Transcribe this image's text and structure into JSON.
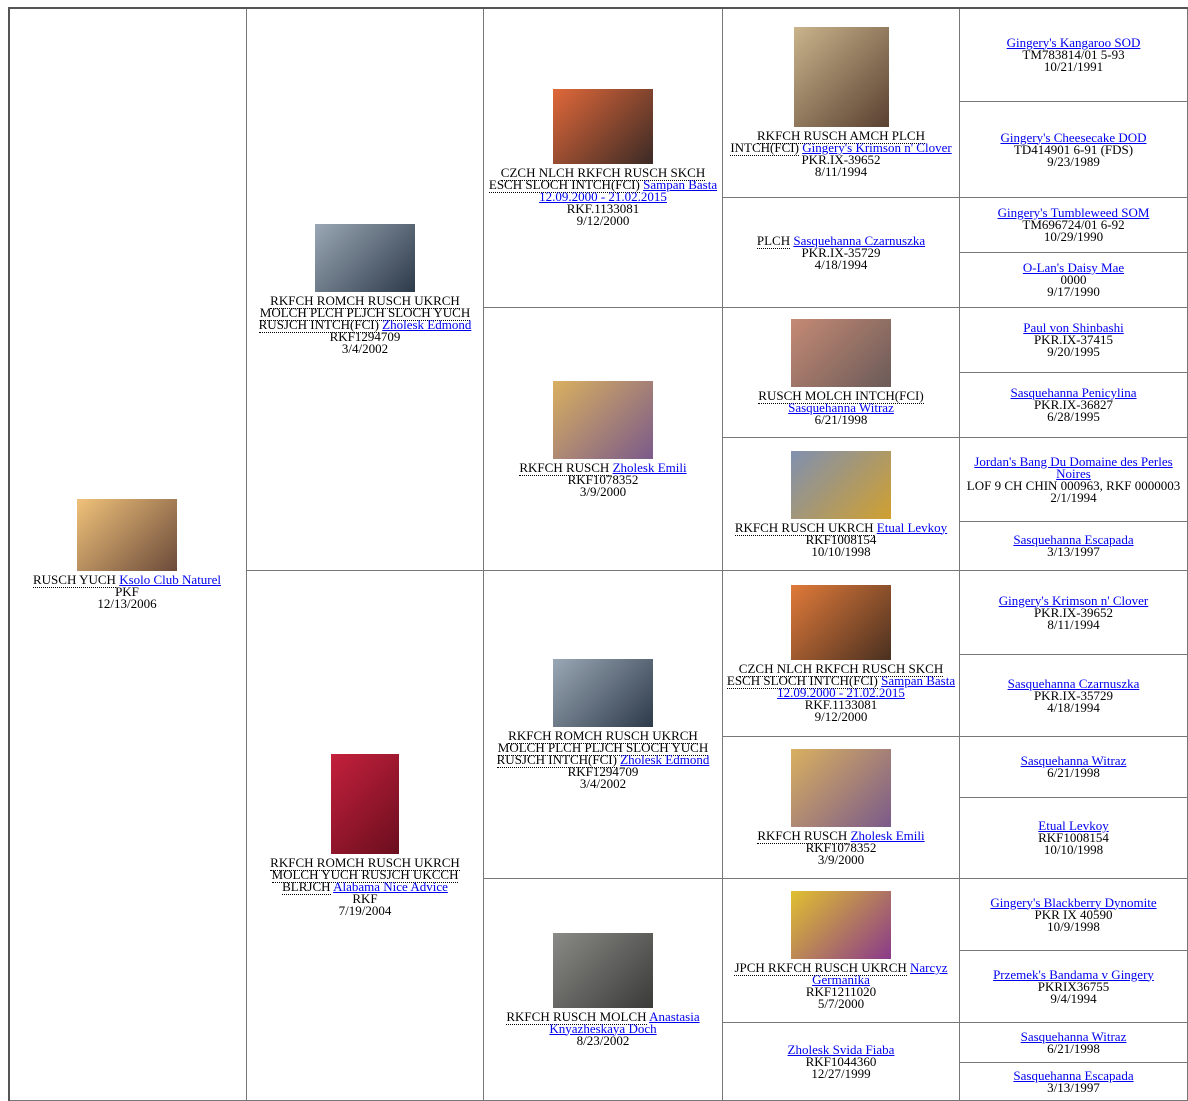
{
  "gen1": [
    {
      "titles": "RUSCH YUCH",
      "name": "Ksolo Club Naturel",
      "reg": "PKF",
      "date": "12/13/2006"
    }
  ],
  "gen2": [
    {
      "titles": "RKFCH ROMCH RUSCH UKRCH MOLCH PLCH PLJCH SLOCH YUCH RUSJCH INTCH(FCI)",
      "name": "Zholesk Edmond",
      "reg": "RKF1294709",
      "date": "3/4/2002"
    },
    {
      "titles": "RKFCH ROMCH RUSCH UKRCH MOLCH YUCH RUSJCH UKCCH BLRJCH",
      "name": "Alabama Nice Advice",
      "reg": "RKF",
      "date": "7/19/2004"
    }
  ],
  "gen3": [
    {
      "titles": "CZCH NLCH RKFCH RUSCH SKCH ESCH SLOCH INTCH(FCI)",
      "name": "Sampan Basta 12.09.2000 - 21.02.2015",
      "reg": "RKF.1133081",
      "date": "9/12/2000"
    },
    {
      "titles": "RKFCH RUSCH",
      "name": "Zholesk Emili",
      "reg": "RKF1078352",
      "date": "3/9/2000"
    },
    {
      "titles": "RKFCH ROMCH RUSCH UKRCH MOLCH PLCH PLJCH SLOCH YUCH RUSJCH INTCH(FCI)",
      "name": "Zholesk Edmond",
      "reg": "RKF1294709",
      "date": "3/4/2002"
    },
    {
      "titles": "RKFCH RUSCH MOLCH",
      "name": "Anastasia Knyazheskaya Doch",
      "date": "8/23/2002"
    }
  ],
  "gen4": [
    {
      "titles": "RKFCH RUSCH AMCH PLCH INTCH(FCI)",
      "name": "Gingery's Krimson n' Clover",
      "reg": "PKR.IX-39652",
      "date": "8/11/1994"
    },
    {
      "titles": "PLCH",
      "name": "Sasquehanna Czarnuszka",
      "reg": "PKR.IX-35729",
      "date": "4/18/1994"
    },
    {
      "titles": "RUSCH MOLCH INTCH(FCI)",
      "name": "Sasquehanna Witraz",
      "date": "6/21/1998"
    },
    {
      "titles": "RKFCH RUSCH UKRCH",
      "name": "Etual Levkoy",
      "reg": "RKF1008154",
      "date": "10/10/1998"
    },
    {
      "titles": "CZCH NLCH RKFCH RUSCH SKCH ESCH SLOCH INTCH(FCI)",
      "name": "Sampan Basta 12.09.2000 - 21.02.2015",
      "reg": "RKF.1133081",
      "date": "9/12/2000"
    },
    {
      "titles": "RKFCH RUSCH",
      "name": "Zholesk Emili",
      "reg": "RKF1078352",
      "date": "3/9/2000"
    },
    {
      "titles": "JPCH RKFCH RUSCH UKRCH",
      "name": "Narcyz Germanika",
      "reg": "RKF1211020",
      "date": "5/7/2000"
    },
    {
      "name": "Zholesk Svida Fiaba",
      "reg": "RKF1044360",
      "date": "12/27/1999"
    }
  ],
  "gen5": [
    {
      "name": "Gingery's Kangaroo SOD",
      "reg": "TM783814/01 5-93",
      "date": "10/21/1991"
    },
    {
      "name": "Gingery's Cheesecake DOD",
      "reg": "TD414901 6-91 (FDS)",
      "date": "9/23/1989"
    },
    {
      "name": "Gingery's Tumbleweed SOM",
      "reg": "TM696724/01 6-92",
      "date": "10/29/1990"
    },
    {
      "name": "O-Lan's Daisy Mae",
      "reg": "0000",
      "date": "9/17/1990"
    },
    {
      "name": "Paul von Shinbashi",
      "reg": "PKR.IX-37415",
      "date": "9/20/1995"
    },
    {
      "name": "Sasquehanna Penicylina",
      "reg": "PKR.IX-36827",
      "date": "6/28/1995"
    },
    {
      "name": "Jordan's Bang Du Domaine des Perles Noires",
      "reg": "LOF 9 CH CHIN 000963, RKF 0000003",
      "date": "2/1/1994"
    },
    {
      "name": "Sasquehanna Escapada",
      "date": "3/13/1997"
    },
    {
      "name": "Gingery's Krimson n' Clover",
      "reg": "PKR.IX-39652",
      "date": "8/11/1994"
    },
    {
      "name": "Sasquehanna Czarnuszka",
      "reg": "PKR.IX-35729",
      "date": "4/18/1994"
    },
    {
      "name": "Sasquehanna Witraz",
      "date": "6/21/1998"
    },
    {
      "name": "Etual Levkoy",
      "reg": "RKF1008154",
      "date": "10/10/1998"
    },
    {
      "name": "Gingery's Blackberry Dynomite",
      "reg": "PKR IX 40590",
      "date": "10/9/1998"
    },
    {
      "name": "Przemek's Bandama v Gingery",
      "reg": "PKRIX36755",
      "date": "9/4/1994"
    },
    {
      "name": "Sasquehanna Witraz",
      "date": "6/21/1998"
    },
    {
      "name": "Sasquehanna Escapada",
      "date": "3/13/1997"
    }
  ]
}
